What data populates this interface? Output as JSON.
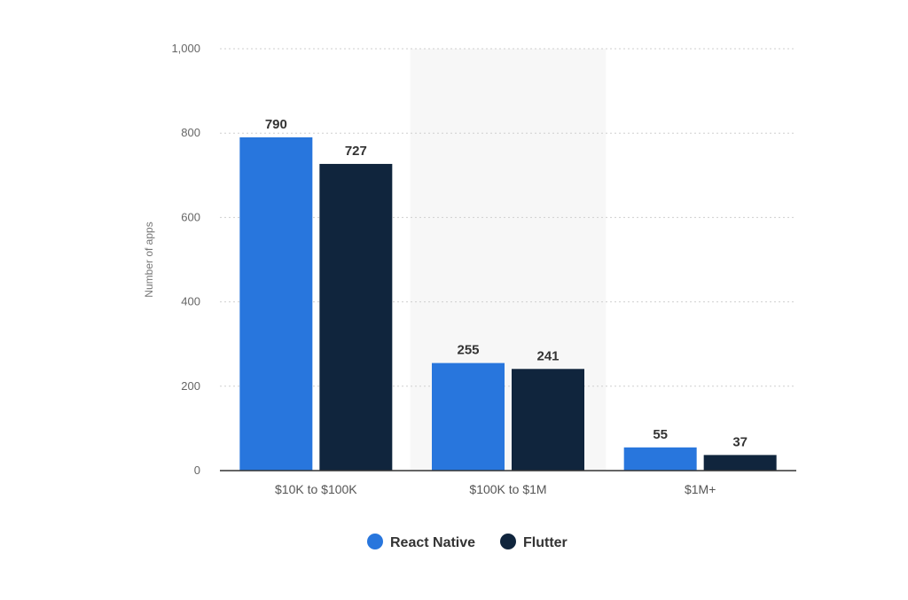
{
  "chart_data": {
    "type": "bar",
    "categories": [
      "$10K to $100K",
      "$100K to $1M",
      "$1M+"
    ],
    "series": [
      {
        "name": "React Native",
        "values": [
          790,
          255,
          55
        ],
        "color": "#2876DD"
      },
      {
        "name": "Flutter",
        "values": [
          727,
          241,
          37
        ],
        "color": "#10253D"
      }
    ],
    "ylabel": "Number of apps",
    "xlabel": "",
    "ylim": [
      0,
      1000
    ],
    "yticks": [
      0,
      200,
      400,
      600,
      800,
      1000
    ],
    "ytick_labels": [
      "0",
      "200",
      "400",
      "600",
      "800",
      "1,000"
    ],
    "grid": true,
    "legend_position": "bottom-center",
    "highlight_category": "$100K to $1M",
    "colors": {
      "grid": "#cfcfcf",
      "axis": "#333333",
      "highlight_band": "#f7f7f7"
    }
  }
}
